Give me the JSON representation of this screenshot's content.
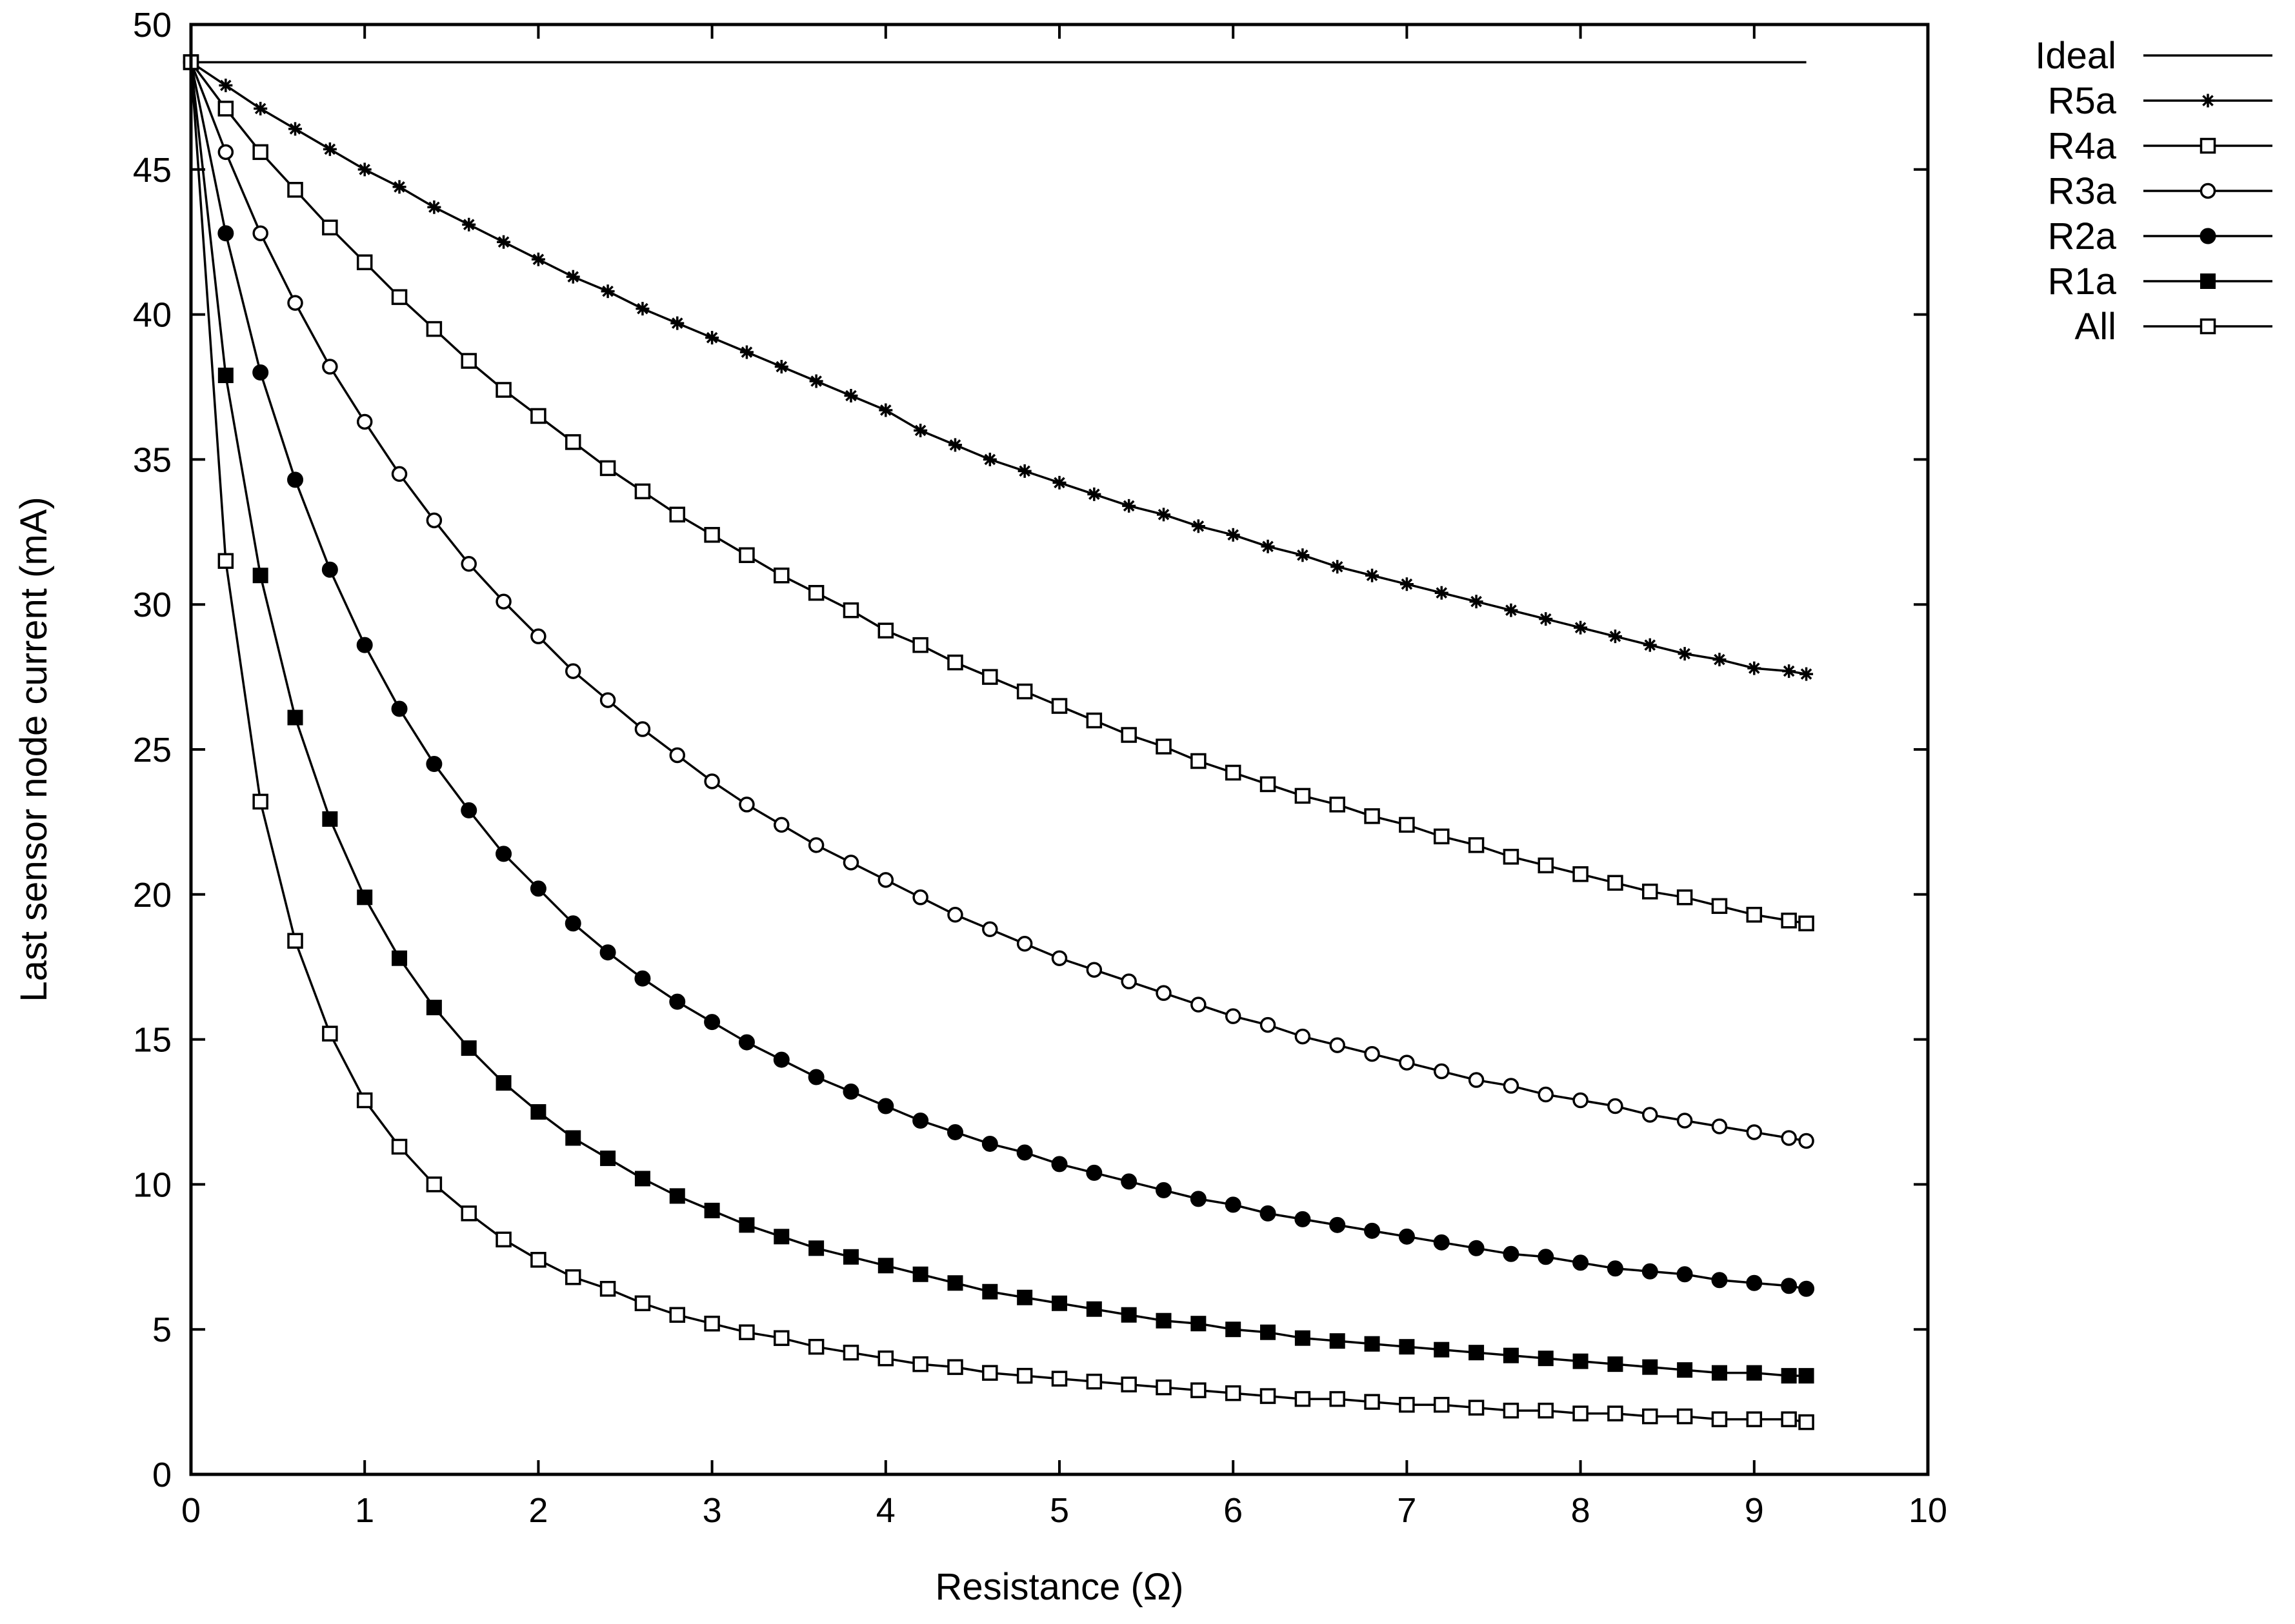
{
  "chart_data": {
    "type": "line",
    "xlabel": "Resistance (Ω)",
    "ylabel": "Last sensor node current (mA)",
    "xlim": [
      0,
      10
    ],
    "ylim": [
      0,
      50
    ],
    "xticks": [
      0,
      1,
      2,
      3,
      4,
      5,
      6,
      7,
      8,
      9,
      10
    ],
    "yticks": [
      0,
      5,
      10,
      15,
      20,
      25,
      30,
      35,
      40,
      45,
      50
    ],
    "grid": false,
    "legend_position": "outside-right-top",
    "x": [
      0,
      0.2,
      0.4,
      0.6,
      0.8,
      1.0,
      1.2,
      1.4,
      1.6,
      1.8,
      2.0,
      2.2,
      2.4,
      2.6,
      2.8,
      3.0,
      3.2,
      3.4,
      3.6,
      3.8,
      4.0,
      4.2,
      4.4,
      4.6,
      4.8,
      5.0,
      5.2,
      5.4,
      5.6,
      5.8,
      6.0,
      6.2,
      6.4,
      6.6,
      6.8,
      7.0,
      7.2,
      7.4,
      7.6,
      7.8,
      8.0,
      8.2,
      8.4,
      8.6,
      8.8,
      9.0,
      9.2,
      9.3
    ],
    "series": [
      {
        "name": "Ideal",
        "marker": "none",
        "values": [
          48.7,
          48.7,
          48.7,
          48.7,
          48.7,
          48.7,
          48.7,
          48.7,
          48.7,
          48.7,
          48.7,
          48.7,
          48.7,
          48.7,
          48.7,
          48.7,
          48.7,
          48.7,
          48.7,
          48.7,
          48.7,
          48.7,
          48.7,
          48.7,
          48.7,
          48.7,
          48.7,
          48.7,
          48.7,
          48.7,
          48.7,
          48.7,
          48.7,
          48.7,
          48.7,
          48.7,
          48.7,
          48.7,
          48.7,
          48.7,
          48.7,
          48.7,
          48.7,
          48.7,
          48.7,
          48.7,
          48.7,
          48.7
        ]
      },
      {
        "name": "R5a",
        "marker": "star",
        "values": [
          48.7,
          47.9,
          47.1,
          46.4,
          45.7,
          45.0,
          44.4,
          43.7,
          43.1,
          42.5,
          41.9,
          41.3,
          40.8,
          40.2,
          39.7,
          39.2,
          38.7,
          38.2,
          37.7,
          37.2,
          36.7,
          36.0,
          35.5,
          35.0,
          34.6,
          34.2,
          33.8,
          33.4,
          33.1,
          32.7,
          32.4,
          32.0,
          31.7,
          31.3,
          31.0,
          30.7,
          30.4,
          30.1,
          29.8,
          29.5,
          29.2,
          28.9,
          28.6,
          28.3,
          28.1,
          27.8,
          27.7,
          27.6
        ]
      },
      {
        "name": "R4a",
        "marker": "open-square",
        "values": [
          48.7,
          47.1,
          45.6,
          44.3,
          43.0,
          41.8,
          40.6,
          39.5,
          38.4,
          37.4,
          36.5,
          35.6,
          34.7,
          33.9,
          33.1,
          32.4,
          31.7,
          31.0,
          30.4,
          29.8,
          29.1,
          28.6,
          28.0,
          27.5,
          27.0,
          26.5,
          26.0,
          25.5,
          25.1,
          24.6,
          24.2,
          23.8,
          23.4,
          23.1,
          22.7,
          22.4,
          22.0,
          21.7,
          21.3,
          21.0,
          20.7,
          20.4,
          20.1,
          19.9,
          19.6,
          19.3,
          19.1,
          19.0
        ]
      },
      {
        "name": "R3a",
        "marker": "open-circle",
        "values": [
          48.7,
          45.6,
          42.8,
          40.4,
          38.2,
          36.3,
          34.5,
          32.9,
          31.4,
          30.1,
          28.9,
          27.7,
          26.7,
          25.7,
          24.8,
          23.9,
          23.1,
          22.4,
          21.7,
          21.1,
          20.5,
          19.9,
          19.3,
          18.8,
          18.3,
          17.8,
          17.4,
          17.0,
          16.6,
          16.2,
          15.8,
          15.5,
          15.1,
          14.8,
          14.5,
          14.2,
          13.9,
          13.6,
          13.4,
          13.1,
          12.9,
          12.7,
          12.4,
          12.2,
          12.0,
          11.8,
          11.6,
          11.5
        ]
      },
      {
        "name": "R2a",
        "marker": "filled-circle",
        "values": [
          48.7,
          42.8,
          38.0,
          34.3,
          31.2,
          28.6,
          26.4,
          24.5,
          22.9,
          21.4,
          20.2,
          19.0,
          18.0,
          17.1,
          16.3,
          15.6,
          14.9,
          14.3,
          13.7,
          13.2,
          12.7,
          12.2,
          11.8,
          11.4,
          11.1,
          10.7,
          10.4,
          10.1,
          9.8,
          9.5,
          9.3,
          9.0,
          8.8,
          8.6,
          8.4,
          8.2,
          8.0,
          7.8,
          7.6,
          7.5,
          7.3,
          7.1,
          7.0,
          6.9,
          6.7,
          6.6,
          6.5,
          6.4
        ]
      },
      {
        "name": "R1a",
        "marker": "filled-square",
        "values": [
          48.7,
          37.9,
          31.0,
          26.1,
          22.6,
          19.9,
          17.8,
          16.1,
          14.7,
          13.5,
          12.5,
          11.6,
          10.9,
          10.2,
          9.6,
          9.1,
          8.6,
          8.2,
          7.8,
          7.5,
          7.2,
          6.9,
          6.6,
          6.3,
          6.1,
          5.9,
          5.7,
          5.5,
          5.3,
          5.2,
          5.0,
          4.9,
          4.7,
          4.6,
          4.5,
          4.4,
          4.3,
          4.2,
          4.1,
          4.0,
          3.9,
          3.8,
          3.7,
          3.6,
          3.5,
          3.5,
          3.4,
          3.4
        ]
      },
      {
        "name": "All",
        "marker": "open-square",
        "values": [
          48.7,
          31.5,
          23.2,
          18.4,
          15.2,
          12.9,
          11.3,
          10.0,
          9.0,
          8.1,
          7.4,
          6.8,
          6.4,
          5.9,
          5.5,
          5.2,
          4.9,
          4.7,
          4.4,
          4.2,
          4.0,
          3.8,
          3.7,
          3.5,
          3.4,
          3.3,
          3.2,
          3.1,
          3.0,
          2.9,
          2.8,
          2.7,
          2.6,
          2.6,
          2.5,
          2.4,
          2.4,
          2.3,
          2.2,
          2.2,
          2.1,
          2.1,
          2.0,
          2.0,
          1.9,
          1.9,
          1.9,
          1.8
        ]
      }
    ]
  }
}
